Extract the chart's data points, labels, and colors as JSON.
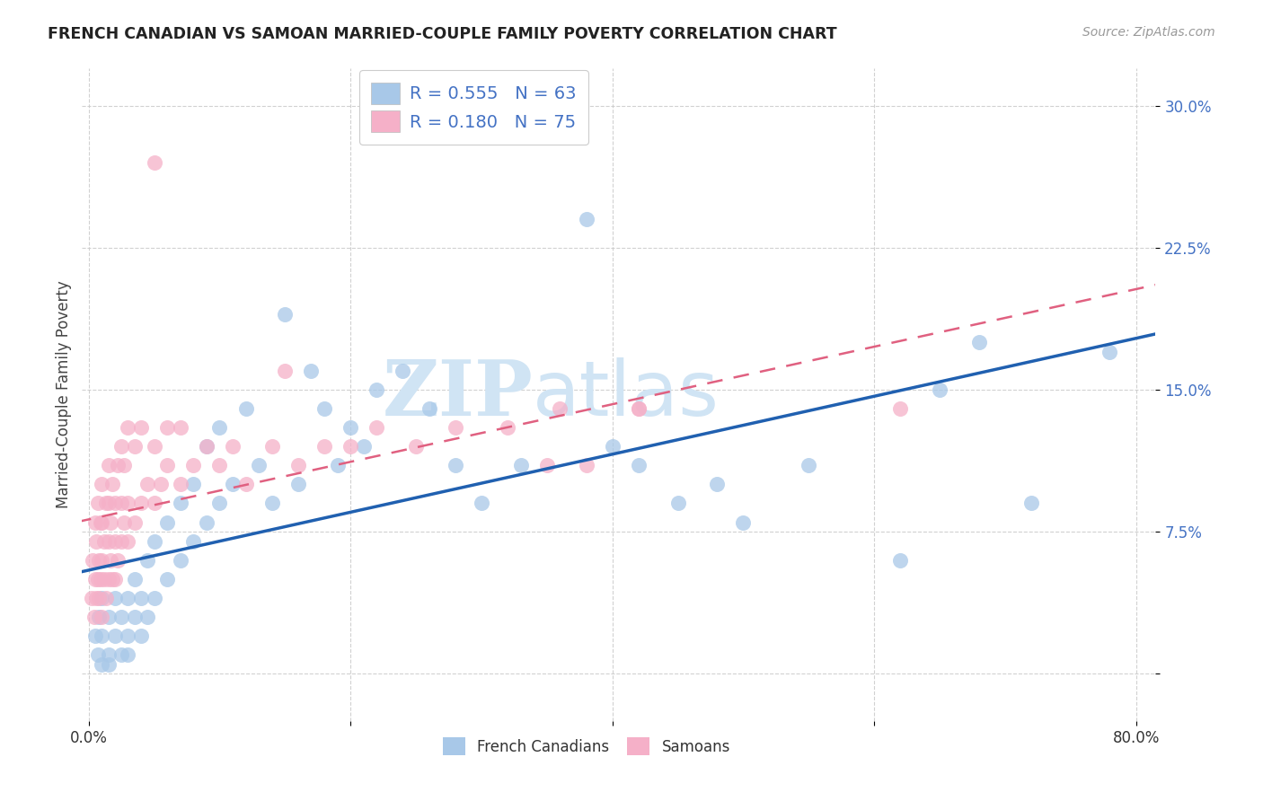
{
  "title": "FRENCH CANADIAN VS SAMOAN MARRIED-COUPLE FAMILY POVERTY CORRELATION CHART",
  "source": "Source: ZipAtlas.com",
  "ylabel": "Married-Couple Family Poverty",
  "xlim_min": -0.005,
  "xlim_max": 0.815,
  "ylim_min": -0.025,
  "ylim_max": 0.32,
  "ytick_vals": [
    0.0,
    0.075,
    0.15,
    0.225,
    0.3
  ],
  "ytick_labels": [
    "",
    "7.5%",
    "15.0%",
    "22.5%",
    "30.0%"
  ],
  "xtick_vals": [
    0.0,
    0.2,
    0.4,
    0.6,
    0.8
  ],
  "xtick_labels": [
    "0.0%",
    "",
    "",
    "",
    "80.0%"
  ],
  "legend_R_blue": "0.555",
  "legend_N_blue": "63",
  "legend_R_pink": "0.180",
  "legend_N_pink": "75",
  "blue_scatter_color": "#a8c8e8",
  "pink_scatter_color": "#f5b0c8",
  "blue_line_color": "#2060b0",
  "pink_line_color": "#e06080",
  "grid_color": "#cccccc",
  "title_color": "#222222",
  "source_color": "#999999",
  "watermark_color": "#d0e4f4",
  "legend_label_blue": "French Canadians",
  "legend_label_pink": "Samoans",
  "R_N_value_color": "#4472c4",
  "R_N_label_color": "#333333",
  "blue_x": [
    0.005,
    0.007,
    0.008,
    0.01,
    0.01,
    0.01,
    0.015,
    0.015,
    0.015,
    0.02,
    0.02,
    0.025,
    0.025,
    0.03,
    0.03,
    0.03,
    0.035,
    0.035,
    0.04,
    0.04,
    0.045,
    0.045,
    0.05,
    0.05,
    0.06,
    0.06,
    0.07,
    0.07,
    0.08,
    0.08,
    0.09,
    0.09,
    0.1,
    0.1,
    0.11,
    0.12,
    0.13,
    0.14,
    0.15,
    0.16,
    0.17,
    0.18,
    0.19,
    0.2,
    0.21,
    0.22,
    0.24,
    0.26,
    0.28,
    0.3,
    0.33,
    0.38,
    0.4,
    0.42,
    0.45,
    0.48,
    0.5,
    0.55,
    0.62,
    0.65,
    0.68,
    0.72,
    0.78
  ],
  "blue_y": [
    0.02,
    0.01,
    0.03,
    0.02,
    0.005,
    0.04,
    0.01,
    0.03,
    0.005,
    0.02,
    0.04,
    0.01,
    0.03,
    0.04,
    0.02,
    0.01,
    0.05,
    0.03,
    0.02,
    0.04,
    0.03,
    0.06,
    0.04,
    0.07,
    0.05,
    0.08,
    0.06,
    0.09,
    0.07,
    0.1,
    0.08,
    0.12,
    0.09,
    0.13,
    0.1,
    0.14,
    0.11,
    0.09,
    0.19,
    0.1,
    0.16,
    0.14,
    0.11,
    0.13,
    0.12,
    0.15,
    0.16,
    0.14,
    0.11,
    0.09,
    0.11,
    0.24,
    0.12,
    0.11,
    0.09,
    0.1,
    0.08,
    0.11,
    0.06,
    0.15,
    0.175,
    0.09,
    0.17
  ],
  "pink_x": [
    0.002,
    0.003,
    0.004,
    0.005,
    0.005,
    0.006,
    0.006,
    0.007,
    0.007,
    0.008,
    0.008,
    0.009,
    0.009,
    0.01,
    0.01,
    0.01,
    0.01,
    0.012,
    0.012,
    0.013,
    0.013,
    0.015,
    0.015,
    0.015,
    0.015,
    0.017,
    0.017,
    0.018,
    0.018,
    0.02,
    0.02,
    0.02,
    0.022,
    0.022,
    0.025,
    0.025,
    0.025,
    0.027,
    0.027,
    0.03,
    0.03,
    0.03,
    0.035,
    0.035,
    0.04,
    0.04,
    0.045,
    0.05,
    0.05,
    0.055,
    0.06,
    0.06,
    0.07,
    0.07,
    0.08,
    0.09,
    0.1,
    0.11,
    0.12,
    0.14,
    0.16,
    0.18,
    0.2,
    0.22,
    0.25,
    0.28,
    0.32,
    0.36,
    0.38,
    0.42,
    0.05,
    0.15,
    0.35,
    0.42,
    0.62
  ],
  "pink_y": [
    0.04,
    0.06,
    0.03,
    0.05,
    0.08,
    0.04,
    0.07,
    0.05,
    0.09,
    0.04,
    0.06,
    0.05,
    0.08,
    0.03,
    0.06,
    0.08,
    0.1,
    0.05,
    0.07,
    0.04,
    0.09,
    0.05,
    0.07,
    0.09,
    0.11,
    0.06,
    0.08,
    0.05,
    0.1,
    0.05,
    0.07,
    0.09,
    0.06,
    0.11,
    0.07,
    0.09,
    0.12,
    0.08,
    0.11,
    0.07,
    0.09,
    0.13,
    0.08,
    0.12,
    0.09,
    0.13,
    0.1,
    0.09,
    0.12,
    0.1,
    0.11,
    0.13,
    0.1,
    0.13,
    0.11,
    0.12,
    0.11,
    0.12,
    0.1,
    0.12,
    0.11,
    0.12,
    0.12,
    0.13,
    0.12,
    0.13,
    0.13,
    0.14,
    0.11,
    0.14,
    0.27,
    0.16,
    0.11,
    0.14,
    0.14
  ]
}
